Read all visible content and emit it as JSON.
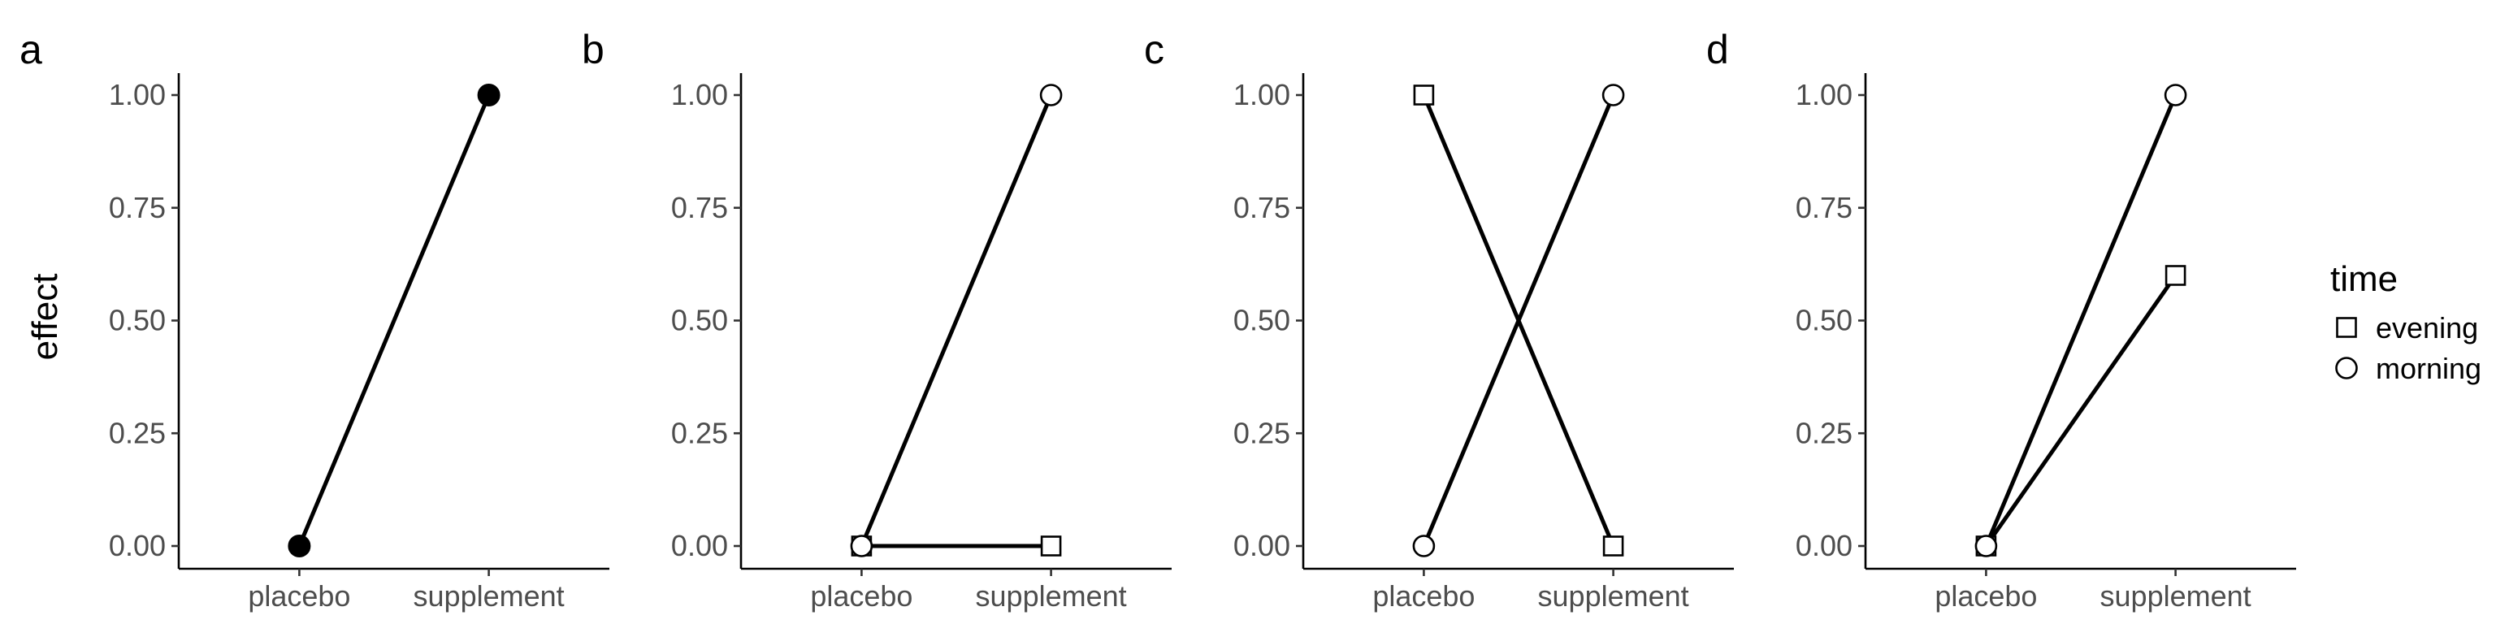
{
  "chart_data": [
    {
      "type": "line",
      "panel": "a",
      "categories": [
        "placebo",
        "supplement"
      ],
      "ylabel": "effect",
      "xlabel": "",
      "ylim": [
        0,
        1
      ],
      "yticks": [
        "0.00",
        "0.25",
        "0.50",
        "0.75",
        "1.00"
      ],
      "series": [
        {
          "values": [
            0,
            1
          ],
          "marker": "filled-circle"
        }
      ]
    },
    {
      "type": "line",
      "panel": "b",
      "categories": [
        "placebo",
        "supplement"
      ],
      "ylabel": "",
      "xlabel": "",
      "ylim": [
        0,
        1
      ],
      "yticks": [
        "0.00",
        "0.25",
        "0.50",
        "0.75",
        "1.00"
      ],
      "series": [
        {
          "name": "evening",
          "values": [
            0,
            0
          ],
          "marker": "square"
        },
        {
          "name": "morning",
          "values": [
            0,
            1
          ],
          "marker": "circle"
        }
      ]
    },
    {
      "type": "line",
      "panel": "c",
      "categories": [
        "placebo",
        "supplement"
      ],
      "ylabel": "",
      "xlabel": "",
      "ylim": [
        0,
        1
      ],
      "yticks": [
        "0.00",
        "0.25",
        "0.50",
        "0.75",
        "1.00"
      ],
      "series": [
        {
          "name": "evening",
          "values": [
            1,
            0
          ],
          "marker": "square"
        },
        {
          "name": "morning",
          "values": [
            0,
            1
          ],
          "marker": "circle"
        }
      ]
    },
    {
      "type": "line",
      "panel": "d",
      "categories": [
        "placebo",
        "supplement"
      ],
      "ylabel": "",
      "xlabel": "",
      "ylim": [
        0,
        1
      ],
      "yticks": [
        "0.00",
        "0.25",
        "0.50",
        "0.75",
        "1.00"
      ],
      "series": [
        {
          "name": "evening",
          "values": [
            0,
            0.6
          ],
          "marker": "square"
        },
        {
          "name": "morning",
          "values": [
            0,
            1
          ],
          "marker": "circle"
        }
      ]
    }
  ],
  "legend": {
    "title": "time",
    "position": "right",
    "items": [
      {
        "label": "evening",
        "marker": "square"
      },
      {
        "label": "morning",
        "marker": "circle"
      }
    ]
  },
  "colors": {
    "line": "#000000",
    "filled_marker": "#000000",
    "open_marker_fill": "#ffffff",
    "tick_label": "#4d4d4d"
  }
}
